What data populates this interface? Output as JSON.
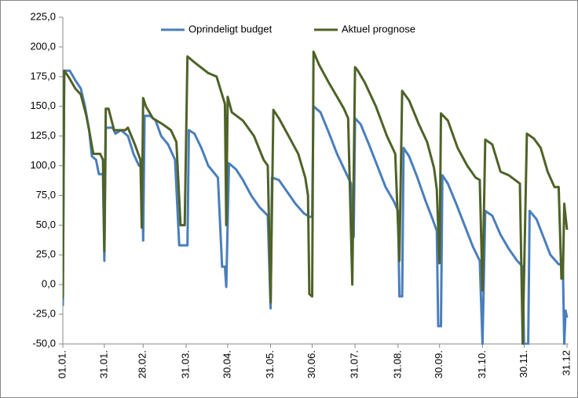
{
  "chart_data": {
    "type": "line",
    "legend": "top",
    "xlim": [
      0,
      364
    ],
    "xticks": [
      {
        "value": 0,
        "label": "01.01."
      },
      {
        "value": 30,
        "label": "31.01."
      },
      {
        "value": 58,
        "label": "28.02."
      },
      {
        "value": 89,
        "label": "31.03."
      },
      {
        "value": 119,
        "label": "30.04."
      },
      {
        "value": 150,
        "label": "31.05."
      },
      {
        "value": 180,
        "label": "30.06."
      },
      {
        "value": 211,
        "label": "31.07."
      },
      {
        "value": 242,
        "label": "31.08."
      },
      {
        "value": 272,
        "label": "30.09."
      },
      {
        "value": 303,
        "label": "31.10."
      },
      {
        "value": 333,
        "label": "30.11."
      },
      {
        "value": 364,
        "label": "31.12"
      }
    ],
    "ylim": [
      -50,
      225
    ],
    "yticks": [
      {
        "value": -50,
        "label": "-50,0"
      },
      {
        "value": -25,
        "label": "-25,0"
      },
      {
        "value": 0,
        "label": "0,0"
      },
      {
        "value": 25,
        "label": "25,0"
      },
      {
        "value": 50,
        "label": "50,0"
      },
      {
        "value": 75,
        "label": "75,0"
      },
      {
        "value": 100,
        "label": "100,0"
      },
      {
        "value": 125,
        "label": "125,0"
      },
      {
        "value": 150,
        "label": "150,0"
      },
      {
        "value": 175,
        "label": "175,0"
      },
      {
        "value": 200,
        "label": "200,0"
      },
      {
        "value": 225,
        "label": "225,0"
      }
    ],
    "series": [
      {
        "name": "Oprindeligt budget",
        "color": "#4a7ebb",
        "x": [
          0,
          1,
          5,
          9,
          13,
          16,
          19,
          21,
          24,
          26,
          29,
          30,
          31,
          36,
          38,
          42,
          47,
          51,
          55,
          57,
          58,
          59,
          63,
          67,
          71,
          76,
          81,
          84,
          90,
          91,
          95,
          100,
          105,
          112,
          115,
          117,
          118,
          120,
          125,
          130,
          136,
          142,
          148,
          150,
          151,
          156,
          162,
          168,
          174,
          178,
          180,
          181,
          186,
          192,
          198,
          204,
          208,
          209,
          210,
          211,
          215,
          221,
          227,
          233,
          239,
          242,
          243,
          245,
          246,
          250,
          256,
          262,
          267,
          270,
          271,
          273,
          274,
          278,
          284,
          290,
          296,
          301,
          303,
          305,
          310,
          316,
          322,
          328,
          332,
          333,
          336,
          337,
          342,
          347,
          352,
          358,
          361,
          362,
          363,
          364
        ],
        "values": [
          -18,
          180,
          180,
          172,
          165,
          150,
          130,
          108,
          105,
          93,
          93,
          20,
          132,
          132,
          127,
          130,
          125,
          110,
          100,
          100,
          37,
          142,
          142,
          138,
          125,
          118,
          105,
          33,
          33,
          130,
          127,
          115,
          100,
          90,
          15,
          15,
          -2,
          102,
          97,
          88,
          75,
          65,
          58,
          -20,
          90,
          88,
          78,
          68,
          60,
          57,
          57,
          150,
          145,
          128,
          110,
          95,
          85,
          50,
          40,
          140,
          135,
          118,
          100,
          82,
          70,
          62,
          -10,
          -10,
          115,
          108,
          90,
          70,
          55,
          45,
          -35,
          -35,
          92,
          85,
          68,
          50,
          32,
          20,
          -50,
          62,
          58,
          42,
          30,
          20,
          15,
          -50,
          -50,
          62,
          55,
          40,
          25,
          17,
          17,
          -50,
          -22,
          -28
        ]
      },
      {
        "name": "Aktuel prognose",
        "color": "#4f6228",
        "x": [
          0,
          1,
          4,
          9,
          13,
          17,
          19,
          22,
          27,
          29,
          30,
          31,
          33,
          37,
          45,
          47,
          52,
          56,
          57,
          58,
          60,
          65,
          72,
          78,
          82,
          85,
          88,
          90,
          95,
          105,
          111,
          117,
          118,
          119,
          122,
          130,
          138,
          145,
          148,
          150,
          152,
          156,
          163,
          170,
          175,
          177,
          178,
          180,
          181,
          185,
          192,
          197,
          203,
          206,
          209,
          211,
          213,
          218,
          226,
          234,
          240,
          243,
          245,
          250,
          257,
          263,
          268,
          270,
          272,
          273,
          278,
          285,
          292,
          298,
          301,
          303,
          305,
          310,
          316,
          322,
          330,
          332,
          335,
          340,
          345,
          350,
          355,
          358,
          360,
          361,
          362,
          364
        ],
        "values": [
          -12,
          180,
          175,
          165,
          160,
          142,
          130,
          110,
          110,
          105,
          28,
          148,
          148,
          130,
          130,
          132,
          118,
          105,
          48,
          157,
          150,
          140,
          135,
          130,
          120,
          50,
          50,
          192,
          187,
          178,
          175,
          152,
          50,
          158,
          145,
          138,
          125,
          105,
          100,
          -15,
          147,
          140,
          125,
          110,
          90,
          75,
          -8,
          -10,
          196,
          185,
          170,
          160,
          148,
          140,
          0,
          183,
          180,
          170,
          150,
          125,
          110,
          20,
          163,
          155,
          135,
          120,
          98,
          80,
          18,
          144,
          138,
          115,
          100,
          90,
          88,
          -5,
          122,
          118,
          95,
          92,
          85,
          -50,
          127,
          123,
          115,
          95,
          82,
          82,
          5,
          5,
          68,
          46
        ]
      }
    ]
  }
}
